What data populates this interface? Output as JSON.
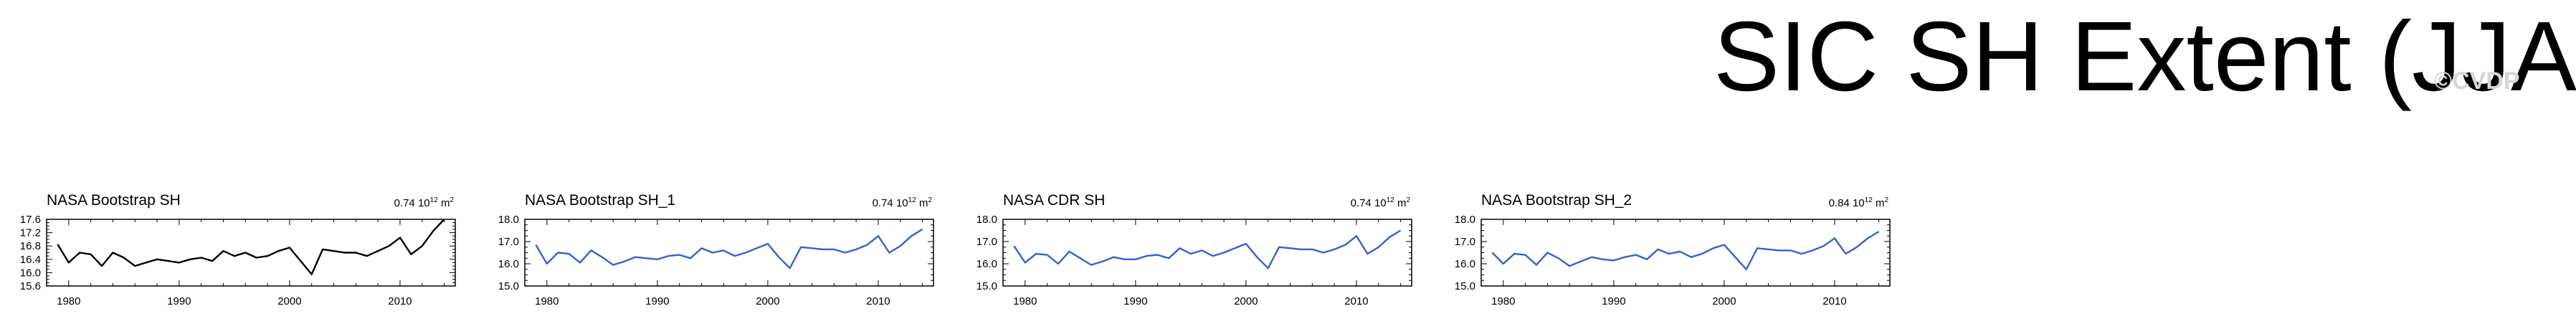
{
  "page": {
    "title": "SIC SH Extent (JJA)",
    "watermark": "©CVDP"
  },
  "chart_data": [
    {
      "type": "line",
      "title": "NASA Bootstrap SH",
      "stat_value": "0.74",
      "stat_exponent_base": "10",
      "stat_exponent": "12",
      "stat_unit": "m",
      "stat_unit_exp": "2",
      "line_color": "#000000",
      "x": [
        1979,
        1980,
        1981,
        1982,
        1983,
        1984,
        1985,
        1986,
        1987,
        1988,
        1989,
        1990,
        1991,
        1992,
        1993,
        1994,
        1995,
        1996,
        1997,
        1998,
        1999,
        2000,
        2001,
        2002,
        2003,
        2004,
        2005,
        2006,
        2007,
        2008,
        2009,
        2010,
        2011,
        2012,
        2013,
        2014
      ],
      "series": [
        {
          "values": [
            16.85,
            16.3,
            16.6,
            16.55,
            16.2,
            16.6,
            16.45,
            16.2,
            16.3,
            16.4,
            16.35,
            16.3,
            16.4,
            16.45,
            16.35,
            16.65,
            16.5,
            16.6,
            16.45,
            16.5,
            16.65,
            16.75,
            16.35,
            15.95,
            16.7,
            16.65,
            16.6,
            16.6,
            16.5,
            16.65,
            16.8,
            17.05,
            16.55,
            16.8,
            17.25,
            17.6
          ]
        }
      ],
      "xlim": [
        1978,
        2015
      ],
      "ylim": [
        15.6,
        17.6
      ],
      "y_ticks": [
        15.6,
        16.0,
        16.4,
        16.8,
        17.2,
        17.6
      ],
      "y_tick_labels": [
        "15.6",
        "16.0",
        "16.4",
        "16.8",
        "17.2",
        "17.6"
      ],
      "x_ticks": [
        1980,
        1990,
        2000,
        2010
      ],
      "x_tick_labels": [
        "1980",
        "1990",
        "2000",
        "2010"
      ]
    },
    {
      "type": "line",
      "title": "NASA Bootstrap SH_1",
      "stat_value": "0.74",
      "stat_exponent_base": "10",
      "stat_exponent": "12",
      "stat_unit": "m",
      "stat_unit_exp": "2",
      "line_color": "#3a5fcd",
      "x": [
        1979,
        1980,
        1981,
        1982,
        1983,
        1984,
        1985,
        1986,
        1987,
        1988,
        1989,
        1990,
        1991,
        1992,
        1993,
        1994,
        1995,
        1996,
        1997,
        1998,
        1999,
        2000,
        2001,
        2002,
        2003,
        2004,
        2005,
        2006,
        2007,
        2008,
        2009,
        2010,
        2011,
        2012,
        2013,
        2014
      ],
      "series": [
        {
          "values": [
            16.85,
            16.0,
            16.5,
            16.45,
            16.05,
            16.6,
            16.3,
            15.95,
            16.1,
            16.3,
            16.25,
            16.2,
            16.35,
            16.4,
            16.25,
            16.7,
            16.5,
            16.6,
            16.35,
            16.5,
            16.7,
            16.9,
            16.3,
            15.8,
            16.75,
            16.7,
            16.65,
            16.65,
            16.5,
            16.65,
            16.85,
            17.25,
            16.5,
            16.8,
            17.25,
            17.55
          ]
        }
      ],
      "xlim": [
        1978,
        2015
      ],
      "ylim": [
        15.0,
        18.0
      ],
      "y_ticks": [
        15.0,
        16.0,
        17.0,
        18.0
      ],
      "y_tick_labels": [
        "15.0",
        "16.0",
        "17.0",
        "18.0"
      ],
      "x_ticks": [
        1980,
        1990,
        2000,
        2010
      ],
      "x_tick_labels": [
        "1980",
        "1990",
        "2000",
        "2010"
      ]
    },
    {
      "type": "line",
      "title": "NASA CDR SH",
      "stat_value": "0.74",
      "stat_exponent_base": "10",
      "stat_exponent": "12",
      "stat_unit": "m",
      "stat_unit_exp": "2",
      "line_color": "#3a5fcd",
      "x": [
        1979,
        1980,
        1981,
        1982,
        1983,
        1984,
        1985,
        1986,
        1987,
        1988,
        1989,
        1990,
        1991,
        1992,
        1993,
        1994,
        1995,
        1996,
        1997,
        1998,
        1999,
        2000,
        2001,
        2002,
        2003,
        2004,
        2005,
        2006,
        2007,
        2008,
        2009,
        2010,
        2011,
        2012,
        2013,
        2014
      ],
      "series": [
        {
          "values": [
            16.8,
            16.05,
            16.45,
            16.4,
            16.0,
            16.55,
            16.25,
            15.95,
            16.1,
            16.3,
            16.2,
            16.2,
            16.35,
            16.4,
            16.25,
            16.7,
            16.45,
            16.6,
            16.35,
            16.5,
            16.7,
            16.9,
            16.3,
            15.8,
            16.75,
            16.7,
            16.65,
            16.65,
            16.5,
            16.65,
            16.85,
            17.25,
            16.45,
            16.75,
            17.2,
            17.5
          ]
        }
      ],
      "xlim": [
        1978,
        2015
      ],
      "ylim": [
        15.0,
        18.0
      ],
      "y_ticks": [
        15.0,
        16.0,
        17.0,
        18.0
      ],
      "y_tick_labels": [
        "15.0",
        "16.0",
        "17.0",
        "18.0"
      ],
      "x_ticks": [
        1980,
        1990,
        2000,
        2010
      ],
      "x_tick_labels": [
        "1980",
        "1990",
        "2000",
        "2010"
      ]
    },
    {
      "type": "line",
      "title": "NASA Bootstrap SH_2",
      "stat_value": "0.84",
      "stat_exponent_base": "10",
      "stat_exponent": "12",
      "stat_unit": "m",
      "stat_unit_exp": "2",
      "line_color": "#3a5fcd",
      "x": [
        1979,
        1980,
        1981,
        1982,
        1983,
        1984,
        1985,
        1986,
        1987,
        1988,
        1989,
        1990,
        1991,
        1992,
        1993,
        1994,
        1995,
        1996,
        1997,
        1998,
        1999,
        2000,
        2001,
        2002,
        2003,
        2004,
        2005,
        2006,
        2007,
        2008,
        2009,
        2010,
        2011,
        2012,
        2013,
        2014
      ],
      "series": [
        {
          "values": [
            16.5,
            16.0,
            16.45,
            16.4,
            15.95,
            16.5,
            16.25,
            15.9,
            16.1,
            16.3,
            16.2,
            16.15,
            16.3,
            16.4,
            16.2,
            16.65,
            16.45,
            16.55,
            16.3,
            16.45,
            16.7,
            16.85,
            16.3,
            15.75,
            16.7,
            16.65,
            16.6,
            16.6,
            16.45,
            16.6,
            16.8,
            17.15,
            16.45,
            16.75,
            17.15,
            17.45
          ]
        }
      ],
      "xlim": [
        1978,
        2015
      ],
      "ylim": [
        15.0,
        18.0
      ],
      "y_ticks": [
        15.0,
        16.0,
        17.0,
        18.0
      ],
      "y_tick_labels": [
        "15.0",
        "16.0",
        "17.0",
        "18.0"
      ],
      "x_ticks": [
        1980,
        1990,
        2000,
        2010
      ],
      "x_tick_labels": [
        "1980",
        "1990",
        "2000",
        "2010"
      ]
    }
  ]
}
